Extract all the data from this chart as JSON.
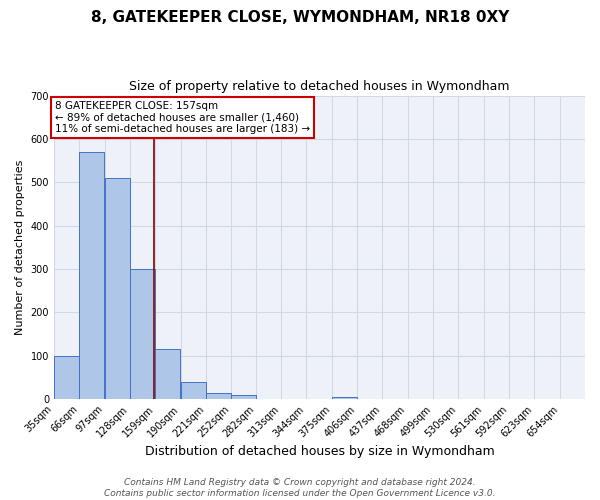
{
  "title": "8, GATEKEEPER CLOSE, WYMONDHAM, NR18 0XY",
  "subtitle": "Size of property relative to detached houses in Wymondham",
  "xlabel": "Distribution of detached houses by size in Wymondham",
  "ylabel": "Number of detached properties",
  "bin_labels": [
    "35sqm",
    "66sqm",
    "97sqm",
    "128sqm",
    "159sqm",
    "190sqm",
    "221sqm",
    "252sqm",
    "282sqm",
    "313sqm",
    "344sqm",
    "375sqm",
    "406sqm",
    "437sqm",
    "468sqm",
    "499sqm",
    "530sqm",
    "561sqm",
    "592sqm",
    "623sqm",
    "654sqm"
  ],
  "bin_edges": [
    35,
    66,
    97,
    128,
    159,
    190,
    221,
    252,
    282,
    313,
    344,
    375,
    406,
    437,
    468,
    499,
    530,
    561,
    592,
    623,
    654
  ],
  "bar_heights": [
    100,
    570,
    510,
    300,
    115,
    40,
    15,
    10,
    0,
    0,
    0,
    5,
    0,
    0,
    0,
    0,
    0,
    0,
    0,
    0
  ],
  "bar_color": "#aec6e8",
  "bar_edge_color": "#4472c4",
  "vline_x": 157,
  "vline_color": "#8b0000",
  "ylim": [
    0,
    700
  ],
  "yticks": [
    0,
    100,
    200,
    300,
    400,
    500,
    600,
    700
  ],
  "grid_color": "#d0d8e8",
  "background_color": "#eef2f8",
  "annotation_line1": "8 GATEKEEPER CLOSE: 157sqm",
  "annotation_line2": "← 89% of detached houses are smaller (1,460)",
  "annotation_line3": "11% of semi-detached houses are larger (183) →",
  "annotation_box_color": "#ffffff",
  "annotation_box_edge": "#cc0000",
  "footer_text": "Contains HM Land Registry data © Crown copyright and database right 2024.\nContains public sector information licensed under the Open Government Licence v3.0.",
  "title_fontsize": 11,
  "subtitle_fontsize": 9,
  "xlabel_fontsize": 9,
  "ylabel_fontsize": 8,
  "tick_fontsize": 7,
  "footer_fontsize": 6.5,
  "annotation_fontsize": 7.5
}
